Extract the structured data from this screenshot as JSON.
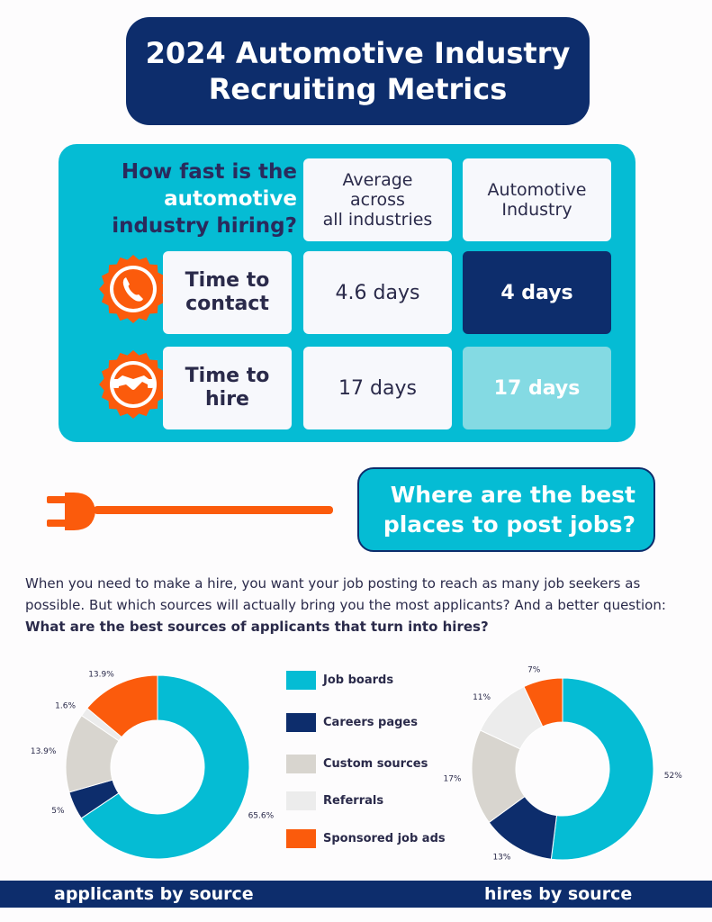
{
  "title": {
    "line1": "2024 Automotive Industry",
    "line2": "Recruiting Metrics"
  },
  "speed": {
    "question": {
      "part1": "How fast is the",
      "part2": "automotive",
      "part3": "industry hiring?"
    },
    "columns": [
      "Average across all industries",
      "Automotive Industry"
    ],
    "header_lines": {
      "avg": [
        "Average",
        "across",
        "all industries"
      ],
      "auto": [
        "Automotive",
        "Industry"
      ]
    },
    "rows": [
      {
        "label_lines": [
          "Time to",
          "contact"
        ],
        "average": "4.6 days",
        "automotive": "4 days",
        "icon": "phone-icon"
      },
      {
        "label_lines": [
          "Time to",
          "hire"
        ],
        "average": "17 days",
        "automotive": "17 days",
        "icon": "handshake-icon"
      }
    ]
  },
  "places": {
    "line1": "Where are the best",
    "line2": "places to post jobs?"
  },
  "intro": {
    "text": "When you need to make a hire, you want your job posting to reach as many job seekers as possible. But which sources will actually bring you the most applicants? And a better question: ",
    "bold": "What are the best sources of applicants that turn into hires?"
  },
  "colors": {
    "navy": "#0d2d6c",
    "teal": "#05bcd4",
    "light_teal": "#84dae3",
    "orange": "#fb5b0c",
    "beige": "#d8d5cf",
    "light_gray": "#ececec"
  },
  "chart_data": [
    {
      "type": "pie",
      "title": "applicants by source",
      "categories": [
        "Job boards",
        "Careers pages",
        "Custom sources",
        "Referrals",
        "Sponsored job ads"
      ],
      "values": [
        65.6,
        5,
        13.9,
        1.6,
        13.9
      ],
      "labels": [
        "65.6%",
        "5%",
        "13.9%",
        "1.6%",
        "13.9%"
      ],
      "colors": [
        "#05bcd4",
        "#0d2d6c",
        "#d8d5cf",
        "#ececec",
        "#fb5b0c"
      ],
      "donut": true
    },
    {
      "type": "pie",
      "title": "hires by source",
      "categories": [
        "Job boards",
        "Careers pages",
        "Custom sources",
        "Referrals",
        "Sponsored job ads"
      ],
      "values": [
        52,
        13,
        17,
        11,
        7
      ],
      "labels": [
        "52%",
        "13%",
        "17%",
        "11%",
        "7%"
      ],
      "colors": [
        "#05bcd4",
        "#0d2d6c",
        "#d8d5cf",
        "#ececec",
        "#fb5b0c"
      ],
      "donut": true
    }
  ],
  "legend": [
    {
      "label": "Job boards",
      "color": "#05bcd4"
    },
    {
      "label": "Careers pages",
      "color": "#0d2d6c"
    },
    {
      "label": "Custom sources",
      "color": "#d8d5cf"
    },
    {
      "label": "Referrals",
      "color": "#ececec"
    },
    {
      "label": "Sponsored job ads",
      "color": "#fb5b0c"
    }
  ],
  "footer": {
    "left": "applicants by source",
    "right": "hires by source"
  }
}
